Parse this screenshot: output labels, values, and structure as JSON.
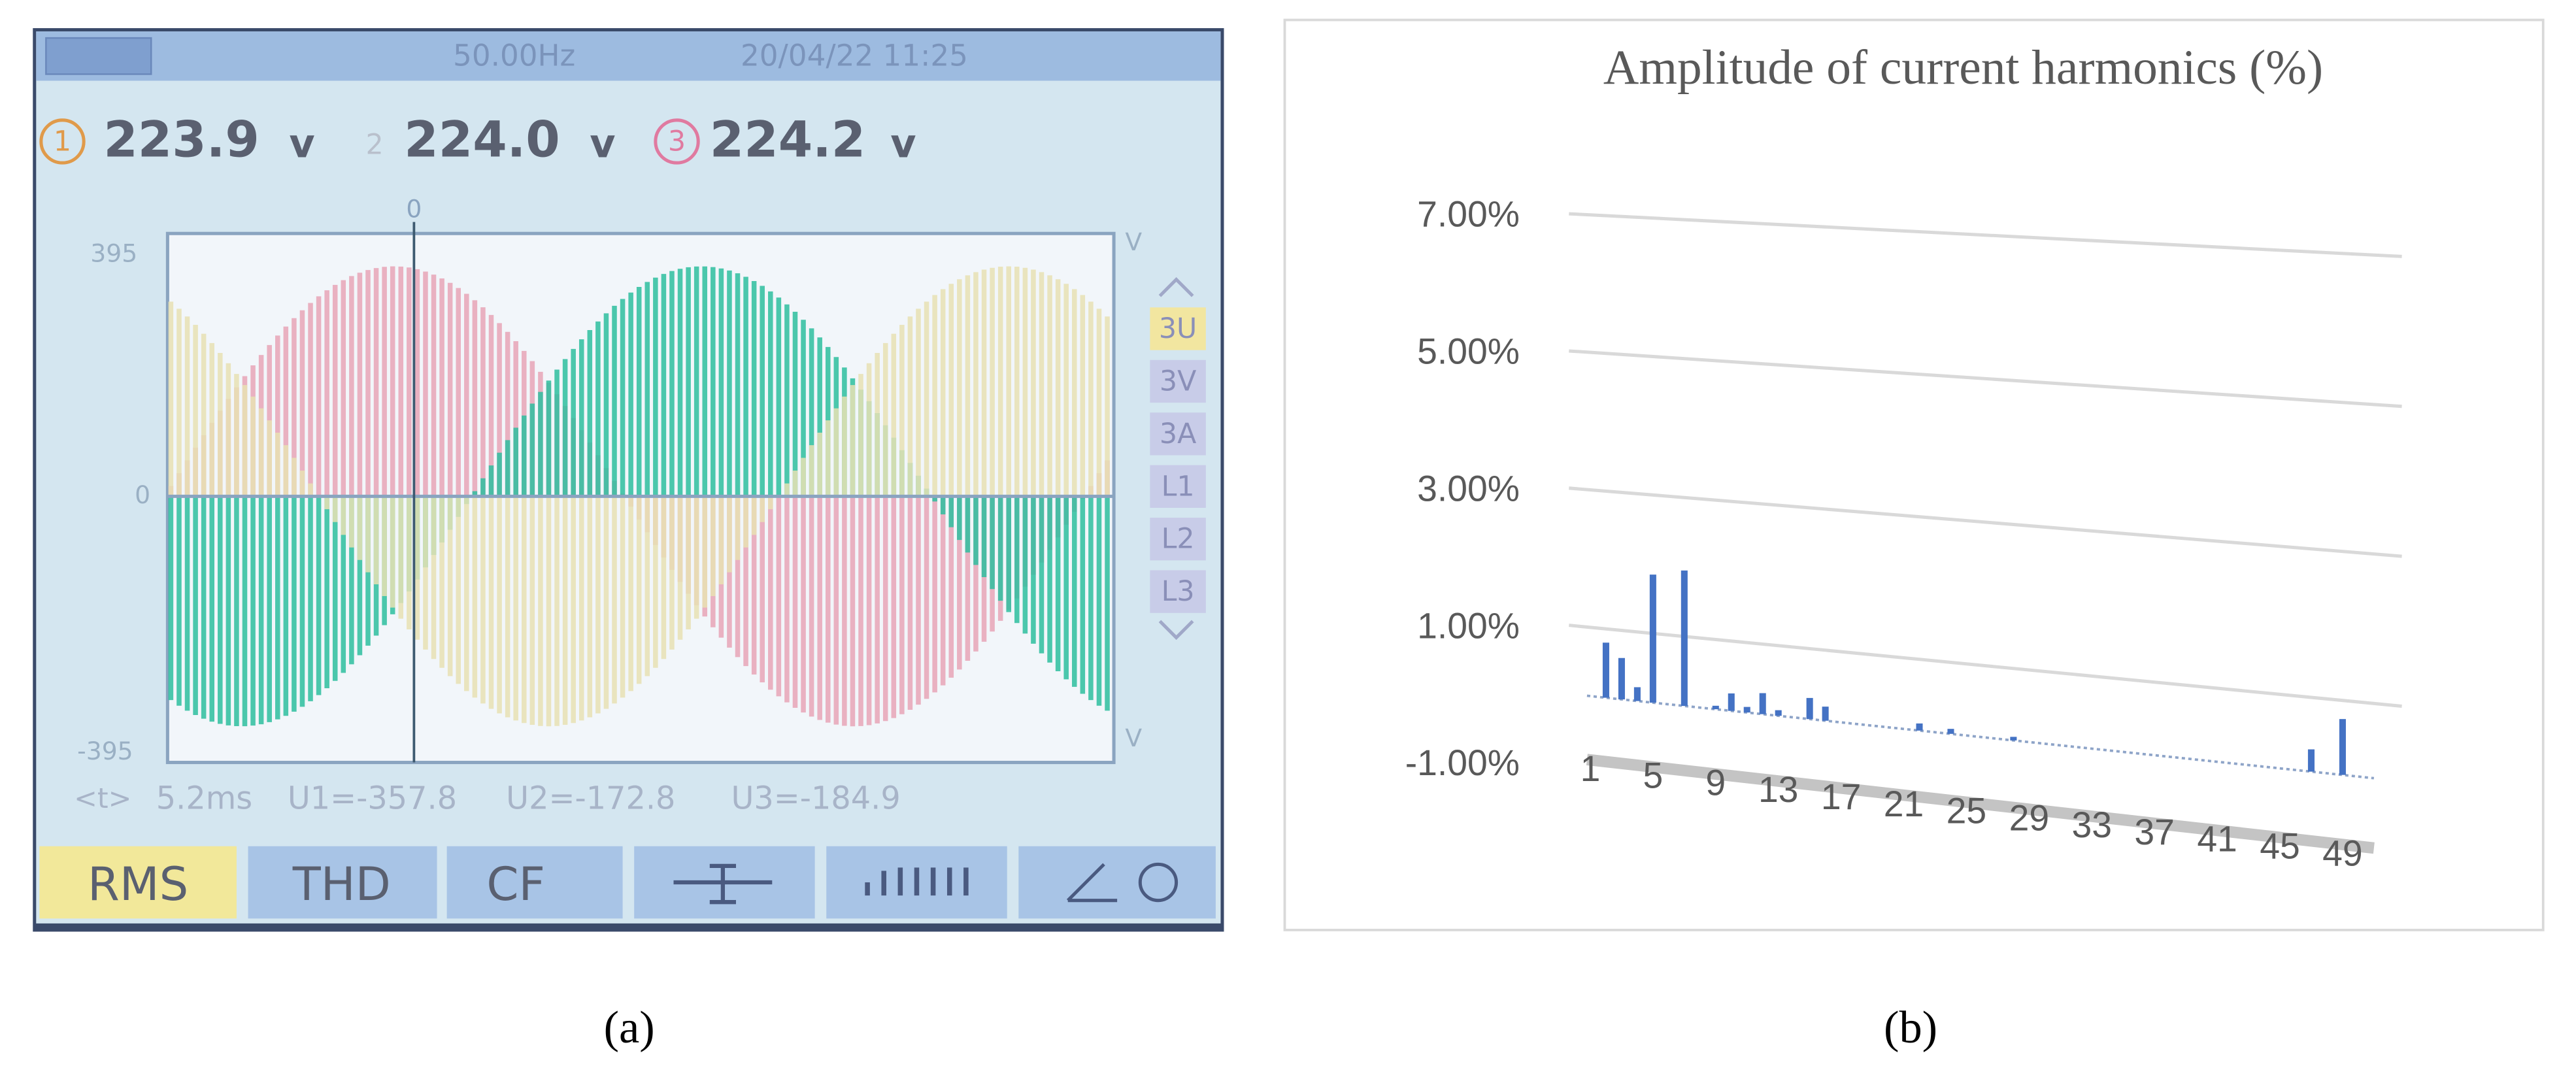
{
  "chart_data": {
    "type": "bar",
    "title": "Amplitude of current harmonics  (%)",
    "categories": [
      "1",
      null,
      null,
      null,
      "5",
      null,
      null,
      null,
      "9",
      null,
      null,
      null,
      "13",
      null,
      null,
      null,
      "17",
      null,
      null,
      null,
      "21",
      null,
      null,
      null,
      "25",
      null,
      null,
      null,
      "29",
      null,
      null,
      null,
      "33",
      null,
      null,
      null,
      "37",
      null,
      null,
      null,
      "41",
      null,
      null,
      null,
      "45",
      null,
      null,
      null,
      "49"
    ],
    "values": [
      0,
      0.8,
      0.6,
      0.2,
      1.85,
      0,
      1.95,
      0,
      0.05,
      0.25,
      0.08,
      0.3,
      0.08,
      0,
      0.3,
      0.2,
      0,
      0,
      0,
      0,
      0,
      0.1,
      0,
      0.07,
      0,
      0,
      0,
      0.05,
      0,
      0,
      0,
      0,
      0,
      0,
      0,
      0,
      0,
      0,
      0,
      0,
      0,
      0,
      0,
      0,
      0,
      0,
      0.3,
      0,
      0.75
    ],
    "color": "#4472c4",
    "ylim": [
      -1,
      7
    ],
    "yticks": [
      {
        "value": -1,
        "label": "-1.00%"
      },
      {
        "value": 1,
        "label": "1.00%"
      },
      {
        "value": 3,
        "label": "3.00%"
      },
      {
        "value": 5,
        "label": "5.00%"
      },
      {
        "value": 7,
        "label": "7.00%"
      }
    ],
    "grid": true
  },
  "scope_photo": {
    "status_bar": {
      "frequency": "50.00Hz",
      "datetime": "20/04/22 11:25"
    },
    "voltages": [
      {
        "phase": "1",
        "value": "223.9",
        "unit": "v"
      },
      {
        "phase": "2",
        "value": "224.0",
        "unit": "v"
      },
      {
        "phase": "3",
        "value": "224.2",
        "unit": "v"
      }
    ],
    "axis": {
      "top": "395",
      "zero": "0",
      "bottom": "-395",
      "cursor": "0",
      "unit": "V"
    },
    "side_menu": [
      "3U",
      "3V",
      "3A",
      "L1",
      "L2",
      "L3"
    ],
    "readout": {
      "time": "5.2ms",
      "u1": "U1=-357.8",
      "u2": "U2=-172.8",
      "u3": "U3=-184.9"
    },
    "buttons": [
      "RMS",
      "THD",
      "CF"
    ]
  },
  "captions": {
    "a": "(a)",
    "b": "(b)"
  }
}
